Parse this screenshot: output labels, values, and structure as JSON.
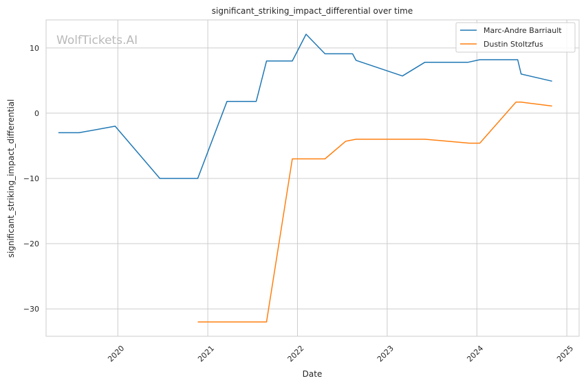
{
  "watermark": "WolfTickets.AI",
  "chart_data": {
    "type": "line",
    "title": "significant_striking_impact_differential over time",
    "xlabel": "Date",
    "ylabel": "significant_striking_impact_differential",
    "xlim": [
      "2019-03-15",
      "2025-02-20"
    ],
    "ylim": [
      -34.2,
      14.3
    ],
    "x_ticks": [
      "2020",
      "2021",
      "2022",
      "2023",
      "2024",
      "2025"
    ],
    "y_ticks": [
      10,
      0,
      -10,
      -20,
      -30
    ],
    "y_tick_labels": [
      "10",
      "0",
      "−10",
      "−20",
      "−30"
    ],
    "grid": true,
    "legend_position": "top-right",
    "series": [
      {
        "name": "Marc-Andre Barriault",
        "color": "#1f77b4",
        "points": [
          [
            "2019-05-04",
            -3.0
          ],
          [
            "2019-07-27",
            -3.0
          ],
          [
            "2019-12-21",
            -2.0
          ],
          [
            "2020-06-20",
            -10.0
          ],
          [
            "2020-11-21",
            -10.0
          ],
          [
            "2021-03-20",
            1.8
          ],
          [
            "2021-07-17",
            1.8
          ],
          [
            "2021-08-28",
            8.0
          ],
          [
            "2021-12-11",
            8.0
          ],
          [
            "2022-02-05",
            12.1
          ],
          [
            "2022-04-23",
            9.1
          ],
          [
            "2022-08-13",
            9.1
          ],
          [
            "2022-08-27",
            8.1
          ],
          [
            "2023-03-04",
            5.7
          ],
          [
            "2023-06-03",
            7.8
          ],
          [
            "2023-11-25",
            7.8
          ],
          [
            "2024-01-13",
            8.2
          ],
          [
            "2024-06-15",
            8.2
          ],
          [
            "2024-06-29",
            6.0
          ],
          [
            "2024-11-02",
            4.9
          ]
        ]
      },
      {
        "name": "Dustin Stoltzfus",
        "color": "#ff7f0e",
        "points": [
          [
            "2020-11-21",
            -32.0
          ],
          [
            "2021-08-28",
            -32.0
          ],
          [
            "2021-12-11",
            -7.0
          ],
          [
            "2022-04-23",
            -7.0
          ],
          [
            "2022-07-16",
            -4.3
          ],
          [
            "2022-08-27",
            -4.0
          ],
          [
            "2023-06-03",
            -4.0
          ],
          [
            "2023-12-02",
            -4.6
          ],
          [
            "2024-01-13",
            -4.6
          ],
          [
            "2024-06-08",
            1.7
          ],
          [
            "2024-06-29",
            1.7
          ],
          [
            "2024-11-02",
            1.1
          ]
        ]
      }
    ]
  }
}
